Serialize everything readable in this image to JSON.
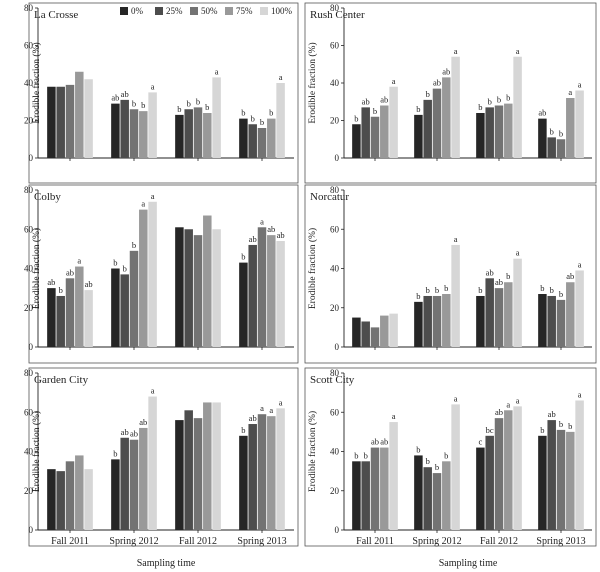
{
  "chart_data": {
    "type": "bar",
    "series_names": [
      "0%",
      "25%",
      "50%",
      "75%",
      "100%"
    ],
    "series_colors": [
      "#262626",
      "#4d4d4d",
      "#737373",
      "#999999",
      "#d6d6d6"
    ],
    "categories": [
      "Fall 2011",
      "Spring 2012",
      "Fall 2012",
      "Spring 2013"
    ],
    "xlabel": "Sampling time",
    "ylabel": "Erodible fraction (%)",
    "ylim": [
      0,
      80
    ],
    "yticks": [
      0,
      20,
      40,
      60,
      80
    ],
    "legend_position": "top",
    "panels": [
      {
        "title": "La Crosse",
        "values": [
          [
            38,
            38,
            39,
            46,
            42
          ],
          [
            29,
            31,
            26,
            25,
            35
          ],
          [
            23,
            26,
            27,
            24,
            43
          ],
          [
            21,
            18,
            16,
            21,
            40
          ]
        ],
        "sig": [
          [
            "",
            "",
            "",
            "",
            ""
          ],
          [
            "ab",
            "ab",
            "b",
            "b",
            "a"
          ],
          [
            "b",
            "b",
            "b",
            "b",
            "a"
          ],
          [
            "b",
            "b",
            "b",
            "b",
            "a"
          ]
        ]
      },
      {
        "title": "Rush Center",
        "values": [
          [
            18,
            27,
            22,
            28,
            38
          ],
          [
            23,
            31,
            37,
            43,
            54
          ],
          [
            24,
            27,
            28,
            29,
            54
          ],
          [
            21,
            11,
            10,
            32,
            36
          ]
        ],
        "sig": [
          [
            "b",
            "ab",
            "b",
            "ab",
            "a"
          ],
          [
            "b",
            "b",
            "ab",
            "ab",
            "a"
          ],
          [
            "b",
            "b",
            "b",
            "b",
            "a"
          ],
          [
            "ab",
            "b",
            "b",
            "a",
            "a"
          ]
        ]
      },
      {
        "title": "Colby",
        "values": [
          [
            30,
            26,
            35,
            41,
            29
          ],
          [
            40,
            37,
            49,
            70,
            74
          ],
          [
            61,
            60,
            57,
            67,
            60
          ],
          [
            43,
            52,
            61,
            57,
            54
          ]
        ],
        "sig": [
          [
            "ab",
            "b",
            "ab",
            "a",
            "ab"
          ],
          [
            "b",
            "b",
            "b",
            "a",
            "a"
          ],
          [
            "",
            "",
            "",
            "",
            ""
          ],
          [
            "b",
            "ab",
            "a",
            "ab",
            "ab"
          ]
        ]
      },
      {
        "title": "Norcatur",
        "values": [
          [
            15,
            13,
            10,
            16,
            17
          ],
          [
            23,
            26,
            26,
            27,
            52
          ],
          [
            26,
            35,
            30,
            33,
            45
          ],
          [
            27,
            26,
            24,
            33,
            39
          ]
        ],
        "sig": [
          [
            "",
            "",
            "",
            "",
            ""
          ],
          [
            "b",
            "b",
            "b",
            "b",
            "a"
          ],
          [
            "b",
            "ab",
            "ab",
            "b",
            "a"
          ],
          [
            "b",
            "b",
            "b",
            "ab",
            "a"
          ]
        ]
      },
      {
        "title": "Garden City",
        "values": [
          [
            31,
            30,
            35,
            38,
            31
          ],
          [
            36,
            47,
            46,
            52,
            68
          ],
          [
            56,
            61,
            57,
            65,
            65
          ],
          [
            48,
            54,
            59,
            58,
            62
          ]
        ],
        "sig": [
          [
            "",
            "",
            "",
            "",
            ""
          ],
          [
            "b",
            "ab",
            "ab",
            "ab",
            "a"
          ],
          [
            "",
            "",
            "",
            "",
            ""
          ],
          [
            "b",
            "ab",
            "a",
            "a",
            "a"
          ]
        ]
      },
      {
        "title": "Scott City",
        "values": [
          [
            35,
            35,
            42,
            42,
            55
          ],
          [
            38,
            32,
            29,
            35,
            64
          ],
          [
            42,
            48,
            57,
            61,
            63
          ],
          [
            48,
            56,
            51,
            50,
            66
          ]
        ],
        "sig": [
          [
            "b",
            "b",
            "ab",
            "ab",
            "a"
          ],
          [
            "b",
            "b",
            "b",
            "b",
            "a"
          ],
          [
            "c",
            "bc",
            "ab",
            "a",
            "a"
          ],
          [
            "b",
            "ab",
            "b",
            "b",
            "a"
          ]
        ]
      }
    ]
  }
}
